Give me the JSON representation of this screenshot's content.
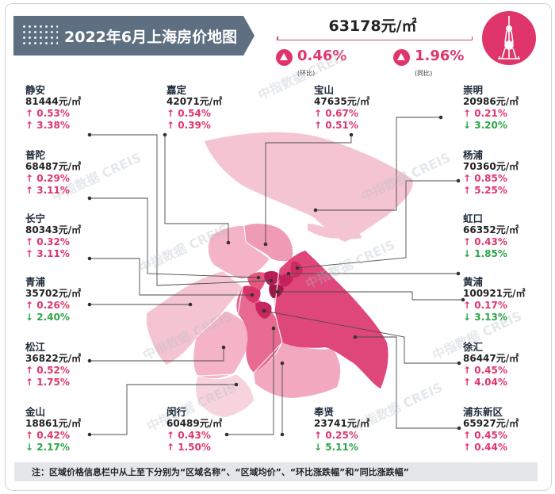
{
  "title": "2022年6月上海房价地图",
  "overall": {
    "avg_price": "63178元/㎡",
    "mom_value": "0.46%",
    "mom_label": "(环比)",
    "yoy_value": "1.96%",
    "yoy_label": "(同比)"
  },
  "watermark": "中指数据 CREIS",
  "districts": [
    {
      "key": "jingan",
      "name": "静安",
      "price": "81444元/㎡",
      "mom_dir": "up",
      "mom": "0.53%",
      "yoy_dir": "up",
      "yoy": "3.38%"
    },
    {
      "key": "jiading",
      "name": "嘉定",
      "price": "42071元/㎡",
      "mom_dir": "up",
      "mom": "0.54%",
      "yoy_dir": "up",
      "yoy": "0.39%"
    },
    {
      "key": "baoshan",
      "name": "宝山",
      "price": "47635元/㎡",
      "mom_dir": "up",
      "mom": "0.67%",
      "yoy_dir": "up",
      "yoy": "0.51%"
    },
    {
      "key": "chongming",
      "name": "崇明",
      "price": "20986元/㎡",
      "mom_dir": "up",
      "mom": "0.21%",
      "yoy_dir": "down",
      "yoy": "3.20%"
    },
    {
      "key": "putuo",
      "name": "普陀",
      "price": "68487元/㎡",
      "mom_dir": "up",
      "mom": "0.29%",
      "yoy_dir": "up",
      "yoy": "3.11%"
    },
    {
      "key": "yangpu",
      "name": "杨浦",
      "price": "70360元/㎡",
      "mom_dir": "up",
      "mom": "0.85%",
      "yoy_dir": "up",
      "yoy": "5.25%"
    },
    {
      "key": "changning",
      "name": "长宁",
      "price": "80343元/㎡",
      "mom_dir": "up",
      "mom": "0.32%",
      "yoy_dir": "up",
      "yoy": "3.11%"
    },
    {
      "key": "hongkou",
      "name": "虹口",
      "price": "66352元/㎡",
      "mom_dir": "up",
      "mom": "0.43%",
      "yoy_dir": "down",
      "yoy": "1.85%"
    },
    {
      "key": "qingpu",
      "name": "青浦",
      "price": "35702元/㎡",
      "mom_dir": "up",
      "mom": "0.26%",
      "yoy_dir": "down",
      "yoy": "2.40%"
    },
    {
      "key": "huangpu",
      "name": "黄浦",
      "price": "100921元/㎡",
      "mom_dir": "up",
      "mom": "0.17%",
      "yoy_dir": "down",
      "yoy": "3.13%"
    },
    {
      "key": "songjiang",
      "name": "松江",
      "price": "36822元/㎡",
      "mom_dir": "up",
      "mom": "0.52%",
      "yoy_dir": "up",
      "yoy": "1.75%"
    },
    {
      "key": "xuhui",
      "name": "徐汇",
      "price": "86447元/㎡",
      "mom_dir": "up",
      "mom": "0.45%",
      "yoy_dir": "up",
      "yoy": "4.04%"
    },
    {
      "key": "jinshan",
      "name": "金山",
      "price": "18861元/㎡",
      "mom_dir": "up",
      "mom": "0.42%",
      "yoy_dir": "down",
      "yoy": "2.17%"
    },
    {
      "key": "minhang",
      "name": "闵行",
      "price": "60489元/㎡",
      "mom_dir": "up",
      "mom": "0.43%",
      "yoy_dir": "up",
      "yoy": "1.50%"
    },
    {
      "key": "fengxian",
      "name": "奉贤",
      "price": "23741元/㎡",
      "mom_dir": "up",
      "mom": "0.25%",
      "yoy_dir": "down",
      "yoy": "5.11%"
    },
    {
      "key": "pudong",
      "name": "浦东新区",
      "price": "65927元/㎡",
      "mom_dir": "up",
      "mom": "0.45%",
      "yoy_dir": "up",
      "yoy": "0.44%"
    }
  ],
  "note": "注：区域价格信息栏中从上至下分别为“区域名称”、“区域均价”、“环比涨跌幅”和“同比涨跌幅”",
  "colors": {
    "accent": "#e0356b",
    "up": "#e0356b",
    "down": "#2da548",
    "banner": "#5d6f80"
  }
}
